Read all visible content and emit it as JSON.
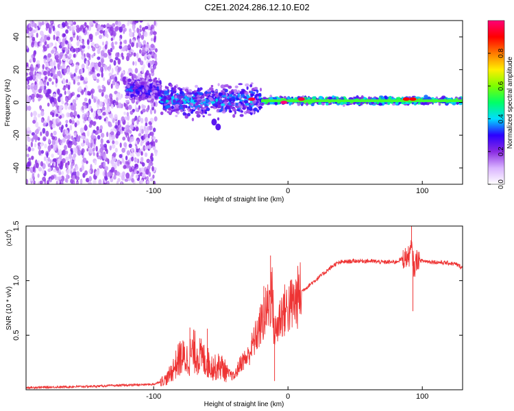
{
  "title": "C2E1.2024.286.12.10.E02",
  "chart_data": [
    {
      "type": "heatmap",
      "name": "spectrogram",
      "xlabel": "Height of straight line (km)",
      "ylabel": "Frequency (Hz)",
      "xlim": [
        -195,
        130
      ],
      "ylim": [
        -50,
        50
      ],
      "xticks": [
        -100,
        0,
        100
      ],
      "yticks": [
        -40,
        -20,
        0,
        20,
        40
      ],
      "colorbar": {
        "label": "Normalized spectral amplitude",
        "range": [
          0,
          1
        ],
        "ticks": [
          0.0,
          0.2,
          0.4,
          0.6,
          0.8
        ],
        "tick_labels": [
          "0.0",
          "0.2",
          "0.4",
          "0.6",
          "0.8"
        ],
        "colors": [
          "#ffffff",
          "#d9b3ff",
          "#8a2be2",
          "#2b00ff",
          "#00ddff",
          "#00ff66",
          "#7dff00",
          "#ffee00",
          "#ff7a00",
          "#ff0000",
          "#ff0077"
        ]
      },
      "regions": [
        {
          "label": "noise",
          "x_range": [
            -195,
            -98
          ],
          "freq_range": [
            -50,
            50
          ],
          "amplitude": 0.15
        },
        {
          "label": "transition",
          "x_range": [
            -120,
            -95
          ],
          "center_hz": 8,
          "width_hz": 8,
          "amplitude": 0.25
        },
        {
          "label": "broadband_signal",
          "x_range": [
            -95,
            -20
          ],
          "center_hz": 1,
          "width_hz": 12,
          "amplitude": 0.3
        },
        {
          "label": "carrier",
          "x_range": [
            -20,
            130
          ],
          "center_hz": 1,
          "width_hz": 3,
          "amplitude": 0.45
        }
      ],
      "tail_points": [
        {
          "x": -55,
          "freq_hz": -12,
          "amplitude": 0.25
        },
        {
          "x": -52,
          "freq_hz": -15,
          "amplitude": 0.25
        }
      ],
      "peak_points": [
        {
          "x": -27,
          "freq_hz": 2,
          "amplitude": 0.95
        },
        {
          "x": -3,
          "freq_hz": 0,
          "amplitude": 1.0
        },
        {
          "x": 10,
          "freq_hz": 2,
          "amplitude": 0.95
        },
        {
          "x": 88,
          "freq_hz": 2,
          "amplitude": 0.9
        },
        {
          "x": 93,
          "freq_hz": 2,
          "amplitude": 0.9
        }
      ]
    },
    {
      "type": "line",
      "name": "snr",
      "xlabel": "Height of straight line (km)",
      "ylabel": "SNR (10 * v/v)",
      "multiplier_label": "(x10",
      "multiplier_exp": "4",
      "multiplier_close": ")",
      "xlim": [
        -195,
        130
      ],
      "ylim": [
        0,
        1.5
      ],
      "xticks": [
        -100,
        0,
        100
      ],
      "yticks": [
        0.5,
        1.0,
        1.5
      ],
      "ytick_labels": [
        "0.5",
        "1.0",
        "1.5"
      ],
      "color": "#ee3333",
      "series": [
        {
          "name": "SNR",
          "x": [
            -195,
            -150,
            -100,
            -90,
            -85,
            -80,
            -75,
            -70,
            -65,
            -60,
            -55,
            -50,
            -45,
            -40,
            -35,
            -30,
            -25,
            -20,
            -15,
            -12,
            -10,
            -5,
            0,
            5,
            10,
            15,
            20,
            25,
            30,
            35,
            40,
            50,
            60,
            70,
            80,
            85,
            90,
            92,
            94,
            96,
            100,
            110,
            120,
            125,
            130
          ],
          "y": [
            0.02,
            0.03,
            0.05,
            0.1,
            0.2,
            0.3,
            0.28,
            0.35,
            0.3,
            0.25,
            0.2,
            0.22,
            0.15,
            0.12,
            0.25,
            0.3,
            0.45,
            0.6,
            0.75,
            0.9,
            0.5,
            0.7,
            0.75,
            0.8,
            0.9,
            0.95,
            1.0,
            1.05,
            1.1,
            1.15,
            1.17,
            1.18,
            1.18,
            1.17,
            1.17,
            1.2,
            1.22,
            1.3,
            1.1,
            1.2,
            1.18,
            1.17,
            1.16,
            1.15,
            1.12
          ]
        }
      ],
      "spikes": [
        {
          "x": -13,
          "y": 1.23
        },
        {
          "x": -10,
          "y": 0.08
        },
        {
          "x": -18,
          "y": 0.95
        },
        {
          "x": 92,
          "y": 1.5
        },
        {
          "x": 93,
          "y": 0.72
        },
        {
          "x": -60,
          "y": 0.56
        },
        {
          "x": -73,
          "y": 0.57
        }
      ]
    }
  ]
}
